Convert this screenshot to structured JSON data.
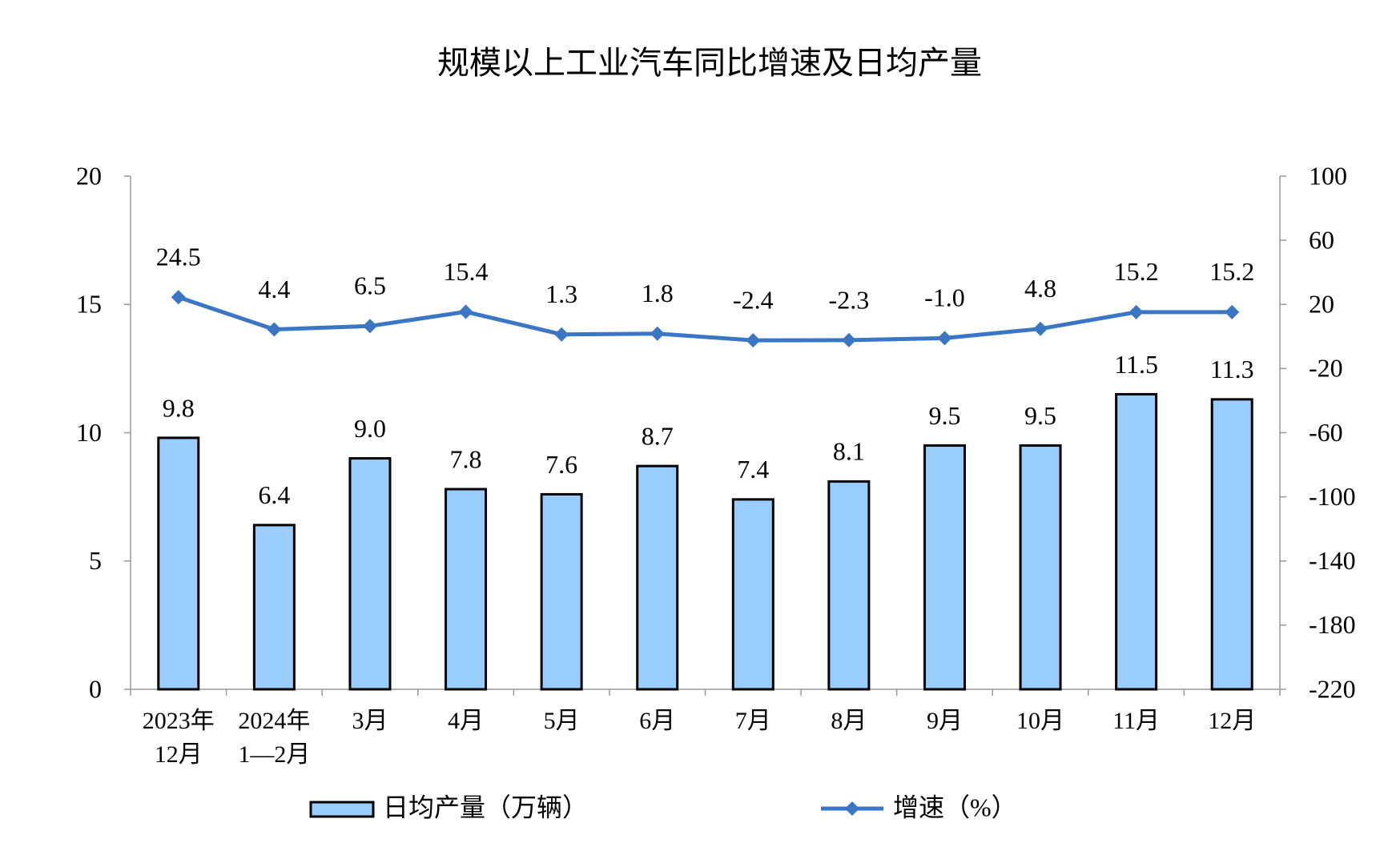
{
  "chart_data": {
    "type": "bar-line",
    "title": "规模以上工业汽车同比增速及日均产量",
    "categories": [
      [
        "2023年",
        "12月"
      ],
      [
        "2024年",
        "1—2月"
      ],
      [
        "3月"
      ],
      [
        "4月"
      ],
      [
        "5月"
      ],
      [
        "6月"
      ],
      [
        "7月"
      ],
      [
        "8月"
      ],
      [
        "9月"
      ],
      [
        "10月"
      ],
      [
        "11月"
      ],
      [
        "12月"
      ]
    ],
    "series": [
      {
        "name": "日均产量（万辆）",
        "type": "bar",
        "color": "#99ccff",
        "values": [
          9.8,
          6.4,
          9.0,
          7.8,
          7.6,
          8.7,
          7.4,
          8.1,
          9.5,
          9.5,
          11.5,
          11.3
        ],
        "value_labels": [
          "9.8",
          "6.4",
          "9.0",
          "7.8",
          "7.6",
          "8.7",
          "7.4",
          "8.1",
          "9.5",
          "9.5",
          "11.5",
          "11.3"
        ]
      },
      {
        "name": "增速（%）",
        "type": "line",
        "axis": "y2",
        "color": "#3a76c4",
        "values": [
          24.5,
          4.4,
          6.5,
          15.4,
          1.3,
          1.8,
          -2.4,
          -2.3,
          -1.0,
          4.8,
          15.2,
          15.2
        ],
        "value_labels": [
          "24.5",
          "4.4",
          "6.5",
          "15.4",
          "1.3",
          "1.8",
          "-2.4",
          "-2.3",
          "-1.0",
          "4.8",
          "15.2",
          "15.2"
        ]
      }
    ],
    "ylim": [
      0,
      20
    ],
    "yticks": [
      0,
      5,
      10,
      15,
      20
    ],
    "y2lim": [
      -220,
      100
    ],
    "y2ticks": [
      -220,
      -180,
      -140,
      -100,
      -60,
      -20,
      20,
      60,
      100
    ],
    "legend": "bottom"
  }
}
